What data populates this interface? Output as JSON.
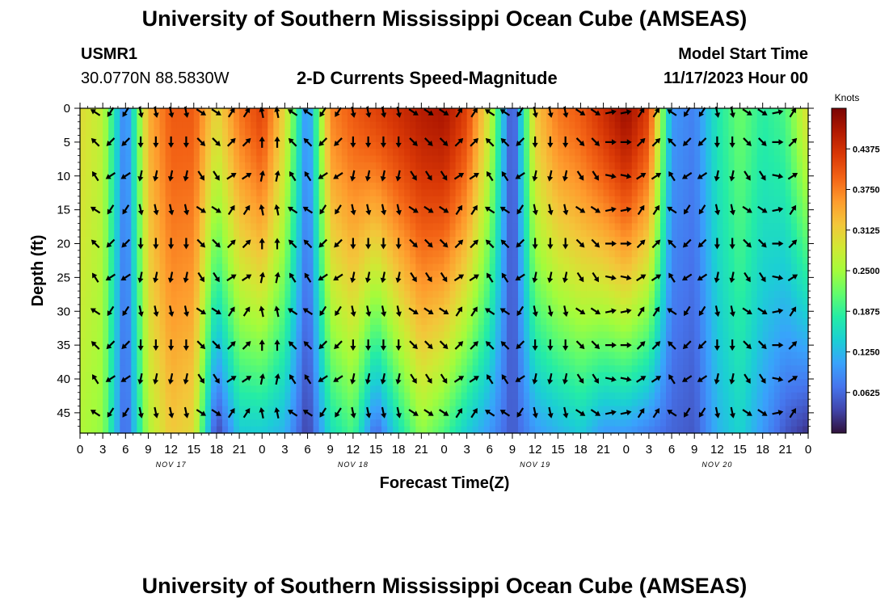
{
  "header": {
    "title": "University of Southern Mississippi Ocean Cube (AMSEAS)",
    "station": "USMR1",
    "coords": "30.0770N  88.5830W",
    "subtitle": "2-D Currents Speed-Magnitude",
    "model_label": "Model Start Time",
    "model_time": "11/17/2023 Hour 00"
  },
  "footer": {
    "title": "University of Southern Mississippi Ocean Cube (AMSEAS)"
  },
  "chart_data": {
    "type": "heatmap",
    "title": "2-D Currents Speed-Magnitude",
    "xlabel": "Forecast Time(Z)",
    "ylabel": "Depth (ft)",
    "xlim": [
      0,
      96
    ],
    "ylim": [
      0,
      48
    ],
    "x_tick_labels": [
      "0",
      "3",
      "6",
      "9",
      "12",
      "15",
      "18",
      "21",
      "0",
      "3",
      "6",
      "9",
      "12",
      "15",
      "18",
      "21",
      "0",
      "3",
      "6",
      "9",
      "12",
      "15",
      "18",
      "21",
      "0",
      "3",
      "6",
      "9",
      "12",
      "15",
      "18",
      "21",
      "0"
    ],
    "y_ticks": [
      0,
      5,
      10,
      15,
      20,
      25,
      30,
      35,
      40,
      45
    ],
    "day_labels": [
      {
        "label": "NOV 17",
        "hour": 12
      },
      {
        "label": "NOV 18",
        "hour": 36
      },
      {
        "label": "NOV 19",
        "hour": 60
      },
      {
        "label": "NOV 20",
        "hour": 84
      }
    ],
    "colorbar": {
      "label": "Knots",
      "min": 0,
      "max": 0.5,
      "ticks": [
        "0.0625",
        "0.1250",
        "0.1875",
        "0.2500",
        "0.3125",
        "0.3750",
        "0.4375"
      ],
      "colors": [
        "#30123b",
        "#4145ab",
        "#4675ed",
        "#39a2fc",
        "#1bcfd4",
        "#24eca6",
        "#61fc6c",
        "#a4fc3b",
        "#d1e834",
        "#f3c63a",
        "#fe9b2d",
        "#f36315",
        "#d93806",
        "#b11901",
        "#7a0403"
      ]
    },
    "speed_profile_hours": [
      0,
      3,
      6,
      9,
      12,
      15,
      18,
      21,
      24,
      27,
      30,
      33,
      36,
      39,
      42,
      45,
      48,
      51,
      54,
      57,
      60,
      63,
      66,
      69,
      72,
      75,
      78,
      81,
      84,
      87,
      90,
      93,
      96
    ],
    "surface_speed_knots": [
      0.3,
      0.27,
      0.07,
      0.34,
      0.4,
      0.4,
      0.3,
      0.38,
      0.42,
      0.3,
      0.08,
      0.37,
      0.4,
      0.42,
      0.44,
      0.46,
      0.47,
      0.42,
      0.28,
      0.03,
      0.32,
      0.38,
      0.4,
      0.44,
      0.48,
      0.42,
      0.1,
      0.08,
      0.17,
      0.22,
      0.18,
      0.2,
      0.3
    ],
    "bottom_speed_knots": [
      0.26,
      0.24,
      0.05,
      0.26,
      0.32,
      0.3,
      0.03,
      0.14,
      0.14,
      0.12,
      0.03,
      0.16,
      0.2,
      0.06,
      0.16,
      0.24,
      0.2,
      0.14,
      0.1,
      0.05,
      0.1,
      0.12,
      0.14,
      0.1,
      0.1,
      0.08,
      0.06,
      0.05,
      0.12,
      0.15,
      0.1,
      0.05,
      0.02
    ],
    "vector_depths_ft": [
      0,
      5,
      10,
      15,
      20,
      25,
      30,
      35,
      40,
      45
    ],
    "vector_hours": [
      0,
      2,
      4,
      6,
      8,
      10,
      12,
      14,
      16,
      18,
      20,
      22,
      24,
      26,
      28,
      30,
      32,
      34,
      36,
      38,
      40,
      42,
      44,
      46,
      48,
      50,
      52,
      54,
      56,
      58,
      60,
      62,
      64,
      66,
      68,
      70,
      72,
      74,
      76,
      78,
      80,
      82,
      84,
      86,
      88,
      90,
      92,
      94,
      96
    ],
    "vector_direction_deg": [
      315,
      315,
      225,
      225,
      180,
      180,
      180,
      180,
      135,
      135,
      45,
      45,
      0,
      0,
      315,
      315,
      225,
      225,
      180,
      180,
      180,
      180,
      135,
      135,
      135,
      45,
      45,
      315,
      315,
      225,
      180,
      180,
      180,
      135,
      135,
      90,
      90,
      45,
      45,
      315,
      225,
      225,
      180,
      180,
      135,
      135,
      90,
      45,
      45
    ]
  }
}
